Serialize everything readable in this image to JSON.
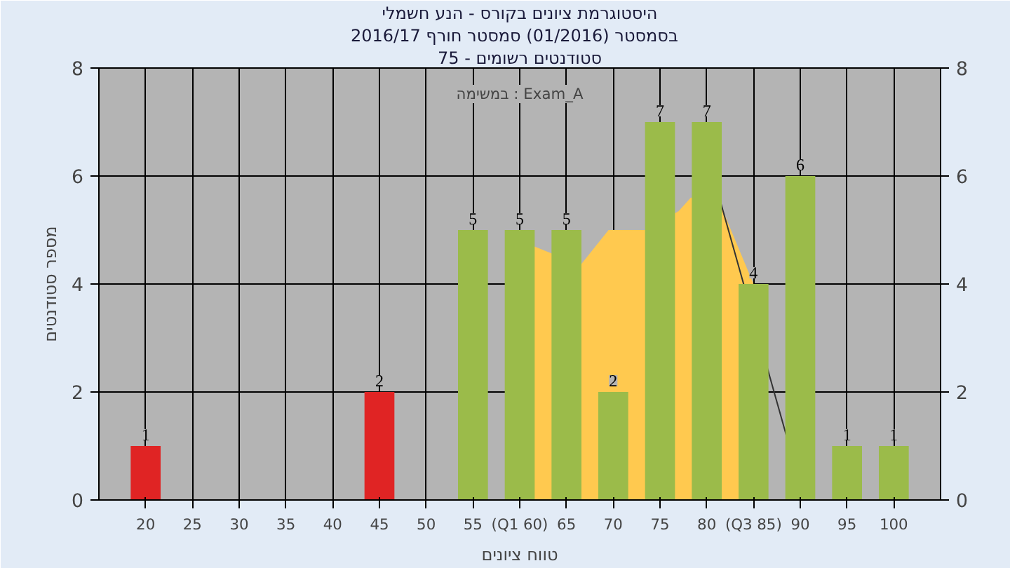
{
  "chart_data": {
    "type": "bar",
    "title": "היסטוגרמת ציונים בקורס - הנע חשמלי",
    "subtitle": "בסמסטר  (01/2016)  סמסטר חורף 2016/17",
    "xlabel": "טווח ציונים",
    "ylabel": "מספר סטודנטים",
    "annotations": [
      "במשימה : Exam_A",
      "סטודנטים רשומים - 75"
    ],
    "x": [
      20,
      25,
      30,
      35,
      40,
      45,
      50,
      55,
      60,
      65,
      70,
      75,
      80,
      85,
      90,
      95,
      100
    ],
    "series": [
      {
        "type": "area",
        "color": "#ffc94f",
        "x": [
          61.5,
          66.5,
          69.5,
          73.5,
          77,
          78.3,
          81.5,
          85
        ],
        "values": [
          4.7,
          4.35,
          5,
          5,
          5.35,
          5.6,
          5.45,
          4
        ]
      },
      {
        "type": "line",
        "color": "#333333",
        "x": [
          81.5,
          88.5
        ],
        "values": [
          5.5,
          1.2
        ]
      },
      {
        "colors": [
          "#e02424",
          "#9bbb4a",
          "#9bbb4a",
          "#9bbb4a",
          "#9bbb4a",
          "#e02424",
          "#9bbb4a",
          "#9bbb4a",
          "#9bbb4a",
          "#9bbb4a",
          "#9bbb4a",
          "#9bbb4a",
          "#9bbb4a",
          "#9bbb4a",
          "#9bbb4a",
          "#9bbb4a",
          "#9bbb4a"
        ],
        "values": [
          1,
          0,
          0,
          0,
          0,
          2,
          0,
          5,
          5,
          5,
          2,
          7,
          7,
          4,
          6,
          1,
          1
        ],
        "value_labels": [
          "1",
          null,
          null,
          null,
          null,
          "2",
          null,
          "5",
          "5",
          "5",
          "2",
          "7",
          "7",
          "4",
          "6",
          "1",
          "1"
        ]
      }
    ],
    "xlim": [
      15,
      105
    ],
    "xticks": [
      20,
      25,
      30,
      35,
      40,
      45,
      50,
      55,
      {
        "value": 60,
        "label": "(Q1 60)"
      },
      65,
      70,
      75,
      80,
      {
        "value": 85,
        "label": "(Q3 85)"
      },
      90,
      95,
      100
    ],
    "ylim": [
      0,
      8
    ],
    "yticks": [
      0,
      2,
      4,
      6,
      8
    ],
    "y2lim": [
      0,
      8
    ],
    "y2ticks": [
      0,
      2,
      4,
      6,
      8
    ],
    "grid": true
  }
}
